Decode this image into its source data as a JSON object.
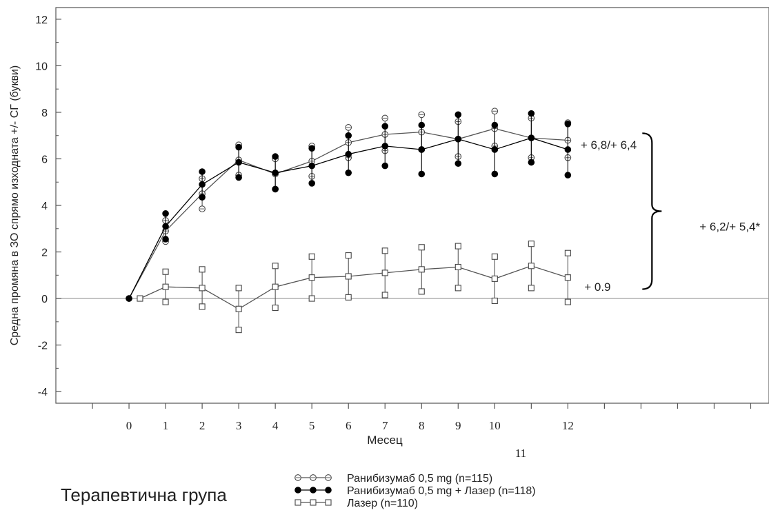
{
  "chart_data": {
    "type": "line",
    "title": "",
    "xlabel": "Месец",
    "ylabel": "Средна промяна в ЗО спрямо изходната +/- СГ (букви)",
    "xlim": [
      -2,
      17.5
    ],
    "ylim": [
      -4.5,
      12.5
    ],
    "x_ticks": [
      0,
      1,
      2,
      3,
      4,
      5,
      6,
      7,
      8,
      9,
      10,
      12
    ],
    "x_tick_labels": [
      "0",
      "1",
      "2",
      "3",
      "4",
      "5",
      "6",
      "7",
      "8",
      "9",
      "10",
      "12"
    ],
    "x_minor_ticks": [
      -1,
      11,
      13,
      14,
      15,
      16,
      17
    ],
    "y_ticks": [
      -4,
      -2,
      0,
      2,
      4,
      6,
      8,
      10,
      12
    ],
    "y_tick_labels": [
      "-4",
      "-2",
      "0",
      "2",
      "4",
      "6",
      "8",
      "10",
      "12"
    ],
    "extra_label": "11",
    "legend_title": "Терапевтична група",
    "legend_position": "bottom",
    "series": [
      {
        "name": "Ранибизумаб 0,5 mg (n=115)",
        "marker": "open-circle",
        "color": "#555555",
        "x": [
          0,
          1,
          2,
          3,
          4,
          5,
          6,
          7,
          8,
          9,
          10,
          11,
          12
        ],
        "values": [
          0.0,
          2.9,
          4.5,
          5.95,
          5.35,
          5.9,
          6.7,
          7.05,
          7.15,
          6.85,
          7.3,
          6.9,
          6.8
        ],
        "error": [
          0.0,
          0.45,
          0.65,
          0.65,
          0.65,
          0.65,
          0.65,
          0.7,
          0.75,
          0.75,
          0.75,
          0.85,
          0.75
        ]
      },
      {
        "name": "Ранибизумаб 0,5 mg + Лазер (n=118)",
        "marker": "filled-circle",
        "color": "#000000",
        "x": [
          0,
          1,
          2,
          3,
          4,
          5,
          6,
          7,
          8,
          9,
          10,
          11,
          12
        ],
        "values": [
          0.0,
          3.1,
          4.9,
          5.85,
          5.4,
          5.7,
          6.2,
          6.55,
          6.4,
          6.85,
          6.4,
          6.9,
          6.4
        ],
        "error": [
          0.0,
          0.55,
          0.55,
          0.65,
          0.7,
          0.75,
          0.8,
          0.85,
          1.05,
          1.05,
          1.05,
          1.05,
          1.1
        ]
      },
      {
        "name": "Лазер (n=110)",
        "marker": "open-square",
        "color": "#555555",
        "x": [
          0.3,
          1,
          2,
          3,
          4,
          5,
          6,
          7,
          8,
          9,
          10,
          11,
          12
        ],
        "values": [
          0.0,
          0.5,
          0.45,
          -0.45,
          0.5,
          0.9,
          0.95,
          1.1,
          1.25,
          1.35,
          0.85,
          1.4,
          0.9
        ],
        "error": [
          0.0,
          0.65,
          0.8,
          0.9,
          0.9,
          0.9,
          0.9,
          0.95,
          0.95,
          0.9,
          0.95,
          0.95,
          1.05
        ]
      }
    ],
    "annotations": [
      {
        "text": "+ 6,8/+ 6,4",
        "x": 12.35,
        "y": 6.6
      },
      {
        "text": "+ 0.9",
        "x": 12.45,
        "y": 0.5
      },
      {
        "text": "+ 6,2/+ 5,4*",
        "x": 15.6,
        "y": 3.1
      }
    ],
    "bracket": {
      "x": 14.3,
      "y_top": 7.1,
      "y_bottom": 0.4
    },
    "reference_line_y": 0,
    "grid": false
  }
}
